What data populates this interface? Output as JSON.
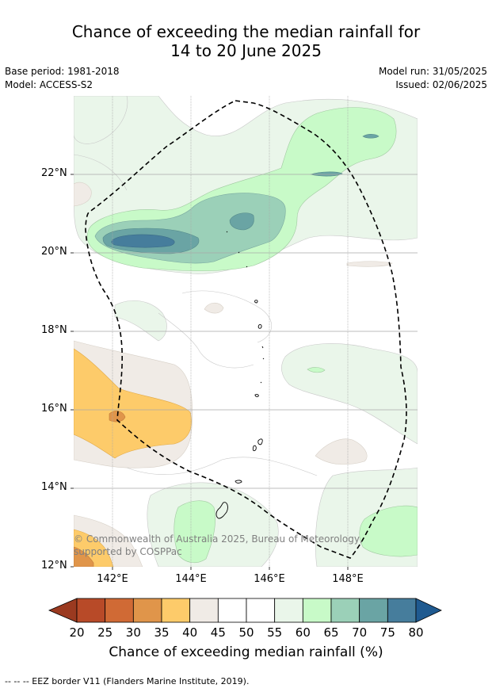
{
  "title_line1": "Chance of exceeding the median rainfall for",
  "title_line2": "14 to 20 June 2025",
  "base_period": "Base period: 1981-2018",
  "model": "Model: ACCESS-S2",
  "model_run": "Model run: 31/05/2025",
  "issued": "Issued: 02/06/2025",
  "lat_labels": [
    "22°N",
    "20°N",
    "18°N",
    "16°N",
    "14°N",
    "12°N"
  ],
  "lon_labels": [
    "142°E",
    "144°E",
    "146°E",
    "148°E"
  ],
  "copyright": "© Commonwealth of Australia 2025, Bureau of Meteorology, supported by COSPPac",
  "colorbar": {
    "ticks": [
      "20",
      "25",
      "30",
      "35",
      "40",
      "45",
      "50",
      "55",
      "60",
      "65",
      "70",
      "75",
      "80"
    ],
    "colors": [
      "#9b3a20",
      "#b84a28",
      "#d06a35",
      "#e0954a",
      "#fdcb6a",
      "#f0ebe6",
      "#ffffff",
      "#ffffff",
      "#eaf6ea",
      "#c8fac8",
      "#9bd0b8",
      "#6aa4a4",
      "#467d9c",
      "#1f5a90"
    ],
    "title": "Chance of exceeding median rainfall (%)"
  },
  "footnote": "--  --  -- EEZ border V11 (Flanders Marine Institute, 2019)."
}
